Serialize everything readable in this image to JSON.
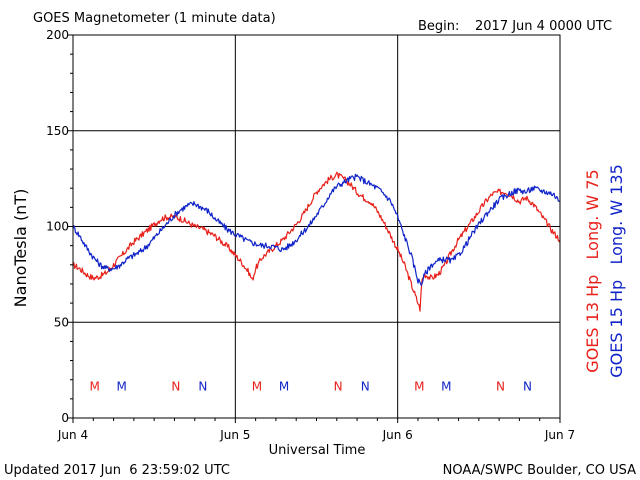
{
  "header": {
    "title": "GOES Magnetometer (1 minute data)",
    "begin_label": "Begin:",
    "begin_value": "2017 Jun 4 0000 UTC"
  },
  "footer": {
    "updated": "Updated 2017 Jun  6 23:59:02 UTC",
    "source": "NOAA/SWPC Boulder, CO USA"
  },
  "chart_data": {
    "type": "line",
    "title": "GOES Magnetometer (1 minute data)",
    "xlabel": "Universal Time",
    "ylabel": "NanoTesla (nT)",
    "ylim": [
      0,
      200
    ],
    "xlim": [
      0,
      72
    ],
    "x_unit": "hours since 2017 Jun 4 0000 UTC",
    "yticks": [
      0,
      50,
      100,
      150,
      200
    ],
    "xticks": [
      {
        "x": 0,
        "label": "Jun 4"
      },
      {
        "x": 24,
        "label": "Jun 5"
      },
      {
        "x": 48,
        "label": "Jun 6"
      },
      {
        "x": 72,
        "label": "Jun 7"
      }
    ],
    "grid": true,
    "series": [
      {
        "name": "GOES 13 Hp   Long. W 75",
        "color": "#e8201a",
        "x": [
          0,
          1,
          2,
          3,
          4,
          5,
          6,
          7,
          8,
          9,
          10,
          11,
          12,
          13,
          14,
          15,
          16,
          17,
          18,
          19,
          20,
          21,
          22,
          23,
          24,
          25,
          26,
          26.5,
          27,
          28,
          29,
          30,
          31,
          32,
          33,
          34,
          35,
          36,
          37,
          38,
          39,
          40,
          41,
          42,
          43,
          44,
          45,
          46,
          47,
          48,
          49,
          50,
          51,
          51.3,
          51.6,
          52,
          53,
          54,
          55,
          56,
          57,
          58,
          59,
          60,
          61,
          62,
          63,
          64,
          65,
          66,
          67,
          68,
          69,
          70,
          71,
          72
        ],
        "values": [
          80,
          78,
          75,
          73,
          74,
          76,
          80,
          84,
          88,
          92,
          95,
          98,
          101,
          104,
          105,
          105,
          104,
          102,
          100,
          99,
          97,
          95,
          92,
          89,
          85,
          81,
          76,
          72,
          78,
          84,
          87,
          90,
          93,
          97,
          101,
          106,
          112,
          118,
          122,
          125,
          127,
          125,
          122,
          118,
          115,
          113,
          108,
          102,
          95,
          88,
          80,
          70,
          60,
          57,
          72,
          75,
          73,
          75,
          80,
          87,
          93,
          98,
          103,
          108,
          113,
          117,
          118,
          118,
          116,
          113,
          115,
          112,
          107,
          102,
          97,
          93
        ]
      },
      {
        "name": "GOES 15 Hp   Long. W 135",
        "color": "#1023c8",
        "x": [
          0,
          1,
          2,
          3,
          4,
          5,
          6,
          7,
          8,
          9,
          10,
          11,
          12,
          13,
          14,
          15,
          16,
          17,
          18,
          19,
          20,
          21,
          22,
          23,
          24,
          25,
          26,
          27,
          28,
          29,
          30,
          31,
          32,
          33,
          34,
          35,
          36,
          37,
          38,
          39,
          40,
          41,
          42,
          43,
          44,
          45,
          46,
          47,
          48,
          49,
          50,
          51,
          51.5,
          52,
          53,
          54,
          55,
          56,
          57,
          58,
          59,
          60,
          61,
          62,
          63,
          64,
          65,
          66,
          67,
          68,
          69,
          70,
          71,
          72
        ],
        "values": [
          100,
          95,
          89,
          84,
          80,
          78,
          78,
          80,
          83,
          85,
          87,
          90,
          94,
          98,
          102,
          106,
          109,
          111,
          112,
          110,
          108,
          104,
          101,
          98,
          96,
          94,
          92,
          91,
          90,
          90,
          89,
          88,
          90,
          93,
          97,
          101,
          106,
          111,
          117,
          121,
          123,
          125,
          126,
          124,
          122,
          120,
          117,
          113,
          105,
          95,
          85,
          72,
          70,
          75,
          80,
          82,
          83,
          82,
          85,
          90,
          96,
          101,
          106,
          110,
          114,
          116,
          118,
          119,
          118,
          120,
          119,
          118,
          117,
          113
        ]
      }
    ],
    "markers": [
      {
        "label": "M",
        "x": 3.2,
        "series": 0
      },
      {
        "label": "M",
        "x": 7.2,
        "series": 1
      },
      {
        "label": "N",
        "x": 15.2,
        "series": 0
      },
      {
        "label": "N",
        "x": 19.2,
        "series": 1
      },
      {
        "label": "M",
        "x": 27.2,
        "series": 0
      },
      {
        "label": "M",
        "x": 31.2,
        "series": 1
      },
      {
        "label": "N",
        "x": 39.2,
        "series": 0
      },
      {
        "label": "N",
        "x": 43.2,
        "series": 1
      },
      {
        "label": "M",
        "x": 51.2,
        "series": 0
      },
      {
        "label": "M",
        "x": 55.2,
        "series": 1
      },
      {
        "label": "N",
        "x": 63.2,
        "series": 0
      },
      {
        "label": "N",
        "x": 67.2,
        "series": 1
      }
    ],
    "marker_y": 17
  }
}
